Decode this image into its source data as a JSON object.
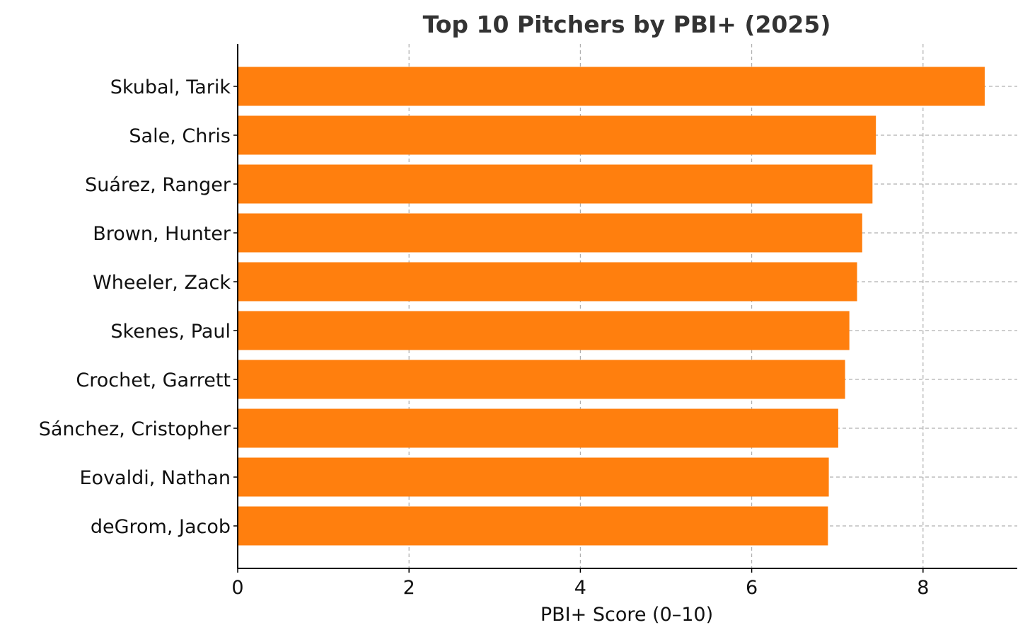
{
  "chart_data": {
    "type": "bar",
    "orientation": "horizontal",
    "title": "Top 10 Pitchers by PBI+ (2025)",
    "xlabel": "PBI+ Score (0–10)",
    "ylabel": "",
    "xlim": [
      0,
      9.1
    ],
    "xticks": [
      0,
      2,
      4,
      6,
      8
    ],
    "grid": true,
    "bar_color": "#ff7f0e",
    "categories": [
      "Skubal, Tarik",
      "Sale, Chris",
      "Suárez, Ranger",
      "Brown, Hunter",
      "Wheeler, Zack",
      "Skenes, Paul",
      "Crochet, Garrett",
      "Sánchez, Cristopher",
      "Eovaldi, Nathan",
      "deGrom, Jacob"
    ],
    "values": [
      8.72,
      7.45,
      7.41,
      7.29,
      7.23,
      7.14,
      7.09,
      7.01,
      6.9,
      6.89
    ]
  }
}
